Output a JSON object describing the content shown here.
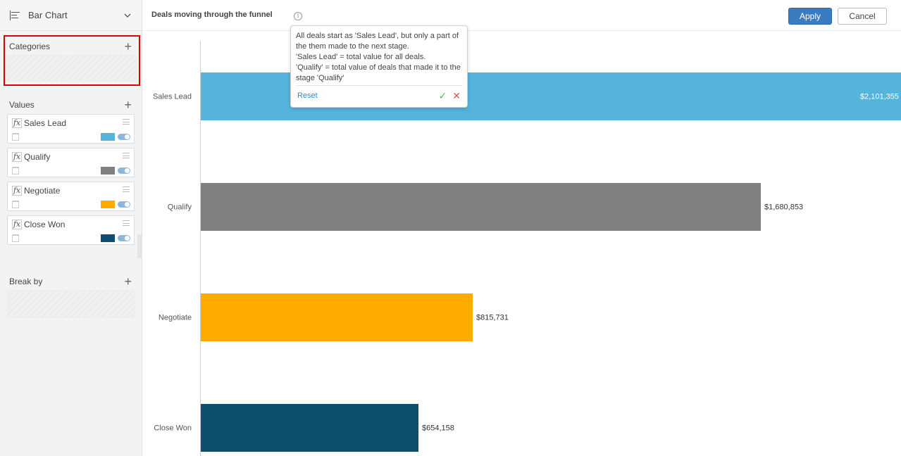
{
  "left_panel": {
    "chart_type": {
      "label": "Bar Chart"
    },
    "categories": {
      "label": "Categories",
      "add": "+"
    },
    "values": {
      "label": "Values",
      "add": "+",
      "items": [
        {
          "name": "Sales Lead",
          "fx": "fx",
          "color": "#56b4dc"
        },
        {
          "name": "Qualify",
          "fx": "fx",
          "color": "#808080"
        },
        {
          "name": "Negotiate",
          "fx": "fx",
          "color": "#ffab00"
        },
        {
          "name": "Close Won",
          "fx": "fx",
          "color": "#0f4f6e"
        }
      ]
    },
    "break_by": {
      "label": "Break by",
      "add": "+"
    }
  },
  "header": {
    "title": "Deals moving through the funnel",
    "info": "i",
    "apply_label": "Apply",
    "cancel_label": "Cancel"
  },
  "tooltip": {
    "text": "All deals start as 'Sales Lead', but only a part of the them made to the next stage.\n 'Sales Lead' = total value for all deals.\n'Qualify' = total  value of deals that made it to the stage 'Qualify'",
    "reset_label": "Reset",
    "confirm_glyph": "✓",
    "cancel_glyph": "✕"
  },
  "chart_data": {
    "type": "bar",
    "orientation": "horizontal",
    "categories": [
      "Sales Lead",
      "Qualify",
      "Negotiate",
      "Close Won"
    ],
    "values": [
      2101355,
      1680853,
      815731,
      654158
    ],
    "labels": [
      "$2,101,355",
      "$1,680,853",
      "$815,731",
      "$654,158"
    ],
    "colors": [
      "#56b4dc",
      "#808080",
      "#ffab00",
      "#0f4f6e"
    ],
    "title": "Deals moving through the funnel",
    "xlabel": "",
    "ylabel": "",
    "xlim": [
      0,
      2101355
    ],
    "grid": false,
    "legend": "none"
  }
}
